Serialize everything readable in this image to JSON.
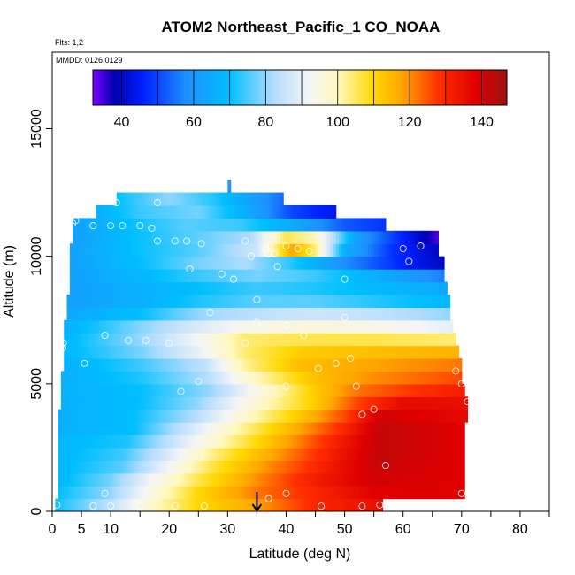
{
  "chart_data": {
    "type": "heatmap",
    "title": "ATOM2 Northeast_Pacific_1 CO_NOAA",
    "flights_label": "Flts: 1,2",
    "dates_label": "MMDD: 0126,0129",
    "xlabel": "Latitude (deg N)",
    "ylabel": "Altitude (m)",
    "xlim": [
      0,
      85
    ],
    "ylim": [
      0,
      18000
    ],
    "x_ticks": [
      {
        "value": 0,
        "label": "0"
      },
      {
        "value": 5,
        "label": "5"
      },
      {
        "value": 10,
        "label": "10"
      },
      {
        "value": 20,
        "label": "20"
      },
      {
        "value": 30,
        "label": "30"
      },
      {
        "value": 40,
        "label": "40"
      },
      {
        "value": 50,
        "label": "50"
      },
      {
        "value": 60,
        "label": "60"
      },
      {
        "value": 70,
        "label": "70"
      },
      {
        "value": 80,
        "label": "80"
      }
    ],
    "x_minor_ticks": [
      15,
      25,
      35,
      45,
      55,
      65,
      75,
      85
    ],
    "y_ticks": [
      {
        "value": 0,
        "label": "0"
      },
      {
        "value": 5000,
        "label": "5000"
      },
      {
        "value": 10000,
        "label": "10000"
      },
      {
        "value": 15000,
        "label": "15000"
      }
    ],
    "colorbar": {
      "range": [
        32,
        147
      ],
      "stops": [
        {
          "v": 32,
          "color": "#7a00ff"
        },
        {
          "v": 38,
          "color": "#0000b0"
        },
        {
          "v": 46,
          "color": "#0020ff"
        },
        {
          "v": 58,
          "color": "#1e90ff"
        },
        {
          "v": 70,
          "color": "#00bfff"
        },
        {
          "v": 82,
          "color": "#b0dcff"
        },
        {
          "v": 92,
          "color": "#f5f5f5"
        },
        {
          "v": 100,
          "color": "#fff8c0"
        },
        {
          "v": 110,
          "color": "#ffd800"
        },
        {
          "v": 118,
          "color": "#ffa500"
        },
        {
          "v": 128,
          "color": "#ff3000"
        },
        {
          "v": 138,
          "color": "#e00000"
        },
        {
          "v": 147,
          "color": "#a01010"
        }
      ],
      "ticks": [
        {
          "value": 40,
          "label": "40"
        },
        {
          "value": 60,
          "label": "60"
        },
        {
          "value": 80,
          "label": "80"
        },
        {
          "value": 100,
          "label": "100"
        },
        {
          "value": 120,
          "label": "120"
        },
        {
          "value": 140,
          "label": "140"
        }
      ]
    },
    "marker_latitude": 35,
    "profiles": [
      {
        "alt": 250,
        "lat_min": 0.5,
        "lat_max": 56.5,
        "points": [
          [
            0,
            70
          ],
          [
            10,
            84
          ],
          [
            18,
            100
          ],
          [
            25,
            110
          ],
          [
            35,
            118
          ],
          [
            45,
            130
          ],
          [
            56,
            135
          ]
        ]
      },
      {
        "alt": 750,
        "lat_min": 1,
        "lat_max": 70.5,
        "points": [
          [
            1,
            70
          ],
          [
            10,
            80
          ],
          [
            17,
            95
          ],
          [
            25,
            110
          ],
          [
            35,
            122
          ],
          [
            45,
            130
          ],
          [
            55,
            138
          ],
          [
            70,
            138
          ]
        ]
      },
      {
        "alt": 1250,
        "lat_min": 1,
        "lat_max": 70.5,
        "points": [
          [
            1,
            68
          ],
          [
            10,
            78
          ],
          [
            17,
            92
          ],
          [
            25,
            106
          ],
          [
            35,
            120
          ],
          [
            45,
            132
          ],
          [
            55,
            140
          ],
          [
            70,
            138
          ]
        ]
      },
      {
        "alt": 1750,
        "lat_min": 1,
        "lat_max": 70.5,
        "points": [
          [
            1,
            68
          ],
          [
            12,
            76
          ],
          [
            19,
            90
          ],
          [
            27,
            106
          ],
          [
            37,
            120
          ],
          [
            47,
            132
          ],
          [
            55,
            141
          ],
          [
            70,
            138
          ]
        ]
      },
      {
        "alt": 2250,
        "lat_min": 1,
        "lat_max": 70.5,
        "points": [
          [
            1,
            68
          ],
          [
            12,
            74
          ],
          [
            20,
            88
          ],
          [
            28,
            104
          ],
          [
            38,
            118
          ],
          [
            48,
            132
          ],
          [
            56,
            142
          ],
          [
            70,
            138
          ]
        ]
      },
      {
        "alt": 2750,
        "lat_min": 1,
        "lat_max": 70.5,
        "points": [
          [
            1,
            68
          ],
          [
            13,
            72
          ],
          [
            21,
            86
          ],
          [
            29,
            100
          ],
          [
            39,
            116
          ],
          [
            49,
            132
          ],
          [
            56,
            142
          ],
          [
            70,
            138
          ]
        ]
      },
      {
        "alt": 3250,
        "lat_min": 1,
        "lat_max": 70.5,
        "points": [
          [
            1,
            66
          ],
          [
            14,
            70
          ],
          [
            22,
            84
          ],
          [
            30,
            98
          ],
          [
            40,
            114
          ],
          [
            50,
            130
          ],
          [
            56,
            142
          ],
          [
            70,
            138
          ]
        ]
      },
      {
        "alt": 3750,
        "lat_min": 1,
        "lat_max": 71,
        "points": [
          [
            1,
            66
          ],
          [
            14,
            70
          ],
          [
            24,
            82
          ],
          [
            32,
            96
          ],
          [
            42,
            112
          ],
          [
            50,
            126
          ],
          [
            56,
            140
          ],
          [
            71,
            136
          ]
        ]
      },
      {
        "alt": 4250,
        "lat_min": 1.5,
        "lat_max": 71,
        "points": [
          [
            1.5,
            66
          ],
          [
            15,
            70
          ],
          [
            25,
            80
          ],
          [
            34,
            96
          ],
          [
            44,
            110
          ],
          [
            52,
            126
          ],
          [
            60,
            136
          ],
          [
            71,
            135
          ]
        ]
      },
      {
        "alt": 4750,
        "lat_min": 1.5,
        "lat_max": 70.5,
        "points": [
          [
            1.5,
            66
          ],
          [
            15,
            70
          ],
          [
            27,
            80
          ],
          [
            36,
            96
          ],
          [
            45,
            112
          ],
          [
            52,
            122
          ],
          [
            62,
            128
          ],
          [
            70.5,
            132
          ]
        ]
      },
      {
        "alt": 5250,
        "lat_min": 1.5,
        "lat_max": 70,
        "points": [
          [
            1.5,
            66
          ],
          [
            15,
            72
          ],
          [
            26,
            82
          ],
          [
            35,
            100
          ],
          [
            45,
            114
          ],
          [
            55,
            120
          ],
          [
            70,
            126
          ]
        ]
      },
      {
        "alt": 5750,
        "lat_min": 2,
        "lat_max": 70,
        "points": [
          [
            2,
            66
          ],
          [
            15,
            74
          ],
          [
            26,
            84
          ],
          [
            33,
            102
          ],
          [
            42,
            114
          ],
          [
            55,
            118
          ],
          [
            70,
            122
          ]
        ]
      },
      {
        "alt": 6250,
        "lat_min": 2,
        "lat_max": 69.5,
        "points": [
          [
            2,
            68
          ],
          [
            15,
            78
          ],
          [
            25,
            90
          ],
          [
            33,
            104
          ],
          [
            43,
            112
          ],
          [
            55,
            114
          ],
          [
            69.5,
            116
          ]
        ]
      },
      {
        "alt": 6750,
        "lat_min": 2,
        "lat_max": 69,
        "points": [
          [
            2,
            68
          ],
          [
            15,
            80
          ],
          [
            25,
            92
          ],
          [
            33,
            104
          ],
          [
            43,
            106
          ],
          [
            55,
            106
          ],
          [
            69,
            104
          ]
        ]
      },
      {
        "alt": 7250,
        "lat_min": 2,
        "lat_max": 68.5,
        "points": [
          [
            2,
            66
          ],
          [
            14,
            78
          ],
          [
            25,
            88
          ],
          [
            34,
            94
          ],
          [
            44,
            96
          ],
          [
            56,
            94
          ],
          [
            68.5,
            90
          ]
        ]
      },
      {
        "alt": 7750,
        "lat_min": 2.5,
        "lat_max": 68,
        "points": [
          [
            2.5,
            64
          ],
          [
            15,
            70
          ],
          [
            25,
            80
          ],
          [
            35,
            84
          ],
          [
            45,
            86
          ],
          [
            57,
            84
          ],
          [
            68,
            80
          ]
        ]
      },
      {
        "alt": 8250,
        "lat_min": 2.5,
        "lat_max": 68,
        "points": [
          [
            2.5,
            62
          ],
          [
            15,
            66
          ],
          [
            25,
            72
          ],
          [
            35,
            76
          ],
          [
            45,
            76
          ],
          [
            57,
            72
          ],
          [
            68,
            68
          ]
        ]
      },
      {
        "alt": 8750,
        "lat_min": 3,
        "lat_max": 67.5,
        "points": [
          [
            3,
            62
          ],
          [
            15,
            66
          ],
          [
            25,
            70
          ],
          [
            35,
            74
          ],
          [
            45,
            72
          ],
          [
            57,
            68
          ],
          [
            67.5,
            64
          ]
        ]
      },
      {
        "alt": 9250,
        "lat_min": 3,
        "lat_max": 67,
        "points": [
          [
            3,
            62
          ],
          [
            15,
            68
          ],
          [
            25,
            74
          ],
          [
            35,
            78
          ],
          [
            45,
            74
          ],
          [
            55,
            66
          ],
          [
            67,
            56
          ]
        ]
      },
      {
        "alt": 9750,
        "lat_min": 3,
        "lat_max": 67,
        "points": [
          [
            3,
            62
          ],
          [
            15,
            70
          ],
          [
            25,
            78
          ],
          [
            33,
            82
          ],
          [
            40,
            74
          ],
          [
            50,
            58
          ],
          [
            60,
            46
          ],
          [
            67,
            40
          ]
        ]
      },
      {
        "alt": 10250,
        "lat_min": 3,
        "lat_max": 66,
        "points": [
          [
            3,
            62
          ],
          [
            14,
            70
          ],
          [
            25,
            76
          ],
          [
            35,
            86
          ],
          [
            41,
            118
          ],
          [
            45,
            104
          ],
          [
            50,
            66
          ],
          [
            58,
            48
          ],
          [
            66,
            40
          ]
        ]
      },
      {
        "alt": 10750,
        "lat_min": 3.5,
        "lat_max": 66,
        "points": [
          [
            3.5,
            62
          ],
          [
            14,
            70
          ],
          [
            24,
            76
          ],
          [
            34,
            82
          ],
          [
            40,
            106
          ],
          [
            45,
            100
          ],
          [
            52,
            62
          ],
          [
            60,
            46
          ],
          [
            66,
            34
          ]
        ]
      },
      {
        "alt": 11250,
        "lat_min": 3.5,
        "lat_max": 57,
        "points": [
          [
            3.5,
            62
          ],
          [
            13,
            70
          ],
          [
            23,
            76
          ],
          [
            32,
            74
          ],
          [
            42,
            64
          ],
          [
            50,
            52
          ],
          [
            57,
            48
          ]
        ]
      },
      {
        "alt": 11750,
        "lat_min": 7.5,
        "lat_max": 48.5,
        "points": [
          [
            7.5,
            66
          ],
          [
            15,
            74
          ],
          [
            25,
            78
          ],
          [
            33,
            66
          ],
          [
            41,
            50
          ],
          [
            48.5,
            44
          ]
        ]
      },
      {
        "alt": 12250,
        "lat_min": 11,
        "lat_max": 39.5,
        "points": [
          [
            11,
            70
          ],
          [
            20,
            80
          ],
          [
            28,
            72
          ],
          [
            34,
            62
          ],
          [
            39.5,
            54
          ]
        ]
      },
      {
        "alt": 12750,
        "lat_min": 30,
        "lat_max": 30.5,
        "points": [
          [
            30,
            60
          ],
          [
            30.5,
            60
          ]
        ]
      }
    ],
    "samples": [
      [
        0.8,
        250
      ],
      [
        7,
        200
      ],
      [
        10,
        200
      ],
      [
        15,
        200
      ],
      [
        21,
        200
      ],
      [
        26,
        200
      ],
      [
        46,
        200
      ],
      [
        53,
        200
      ],
      [
        56,
        250
      ],
      [
        9,
        700
      ],
      [
        37,
        500
      ],
      [
        40,
        700
      ],
      [
        70,
        700
      ],
      [
        57,
        1800
      ],
      [
        53,
        3800
      ],
      [
        55,
        4000
      ],
      [
        71,
        4300
      ],
      [
        70,
        5000
      ],
      [
        69,
        5500
      ],
      [
        52,
        4900
      ],
      [
        51,
        6000
      ],
      [
        48.5,
        5800
      ],
      [
        45.5,
        5600
      ],
      [
        43,
        6900
      ],
      [
        40,
        4900
      ],
      [
        35,
        7400
      ],
      [
        50,
        7600
      ],
      [
        1.8,
        6400
      ],
      [
        1.9,
        6600
      ],
      [
        5.5,
        5800
      ],
      [
        9,
        6900
      ],
      [
        13,
        6700
      ],
      [
        16,
        6700
      ],
      [
        20,
        6600
      ],
      [
        22,
        4700
      ],
      [
        25,
        5100
      ],
      [
        27,
        7800
      ],
      [
        35,
        8300
      ],
      [
        40,
        7300
      ],
      [
        33,
        6600
      ],
      [
        23.5,
        9500
      ],
      [
        29,
        9300
      ],
      [
        31,
        9100
      ],
      [
        38.5,
        9600
      ],
      [
        38,
        10100
      ],
      [
        37,
        10100
      ],
      [
        36.5,
        10300
      ],
      [
        33,
        10600
      ],
      [
        34,
        10000
      ],
      [
        40,
        10400
      ],
      [
        42,
        10300
      ],
      [
        44,
        10200
      ],
      [
        50,
        9100
      ],
      [
        60,
        10300
      ],
      [
        61,
        9800
      ],
      [
        63,
        10400
      ],
      [
        3.5,
        11300
      ],
      [
        4,
        11400
      ],
      [
        7,
        11200
      ],
      [
        10,
        11200
      ],
      [
        12,
        11200
      ],
      [
        15,
        11200
      ],
      [
        17,
        11100
      ],
      [
        18,
        10600
      ],
      [
        21,
        10600
      ],
      [
        23,
        10600
      ],
      [
        25.5,
        10500
      ],
      [
        11,
        12100
      ],
      [
        18,
        12100
      ]
    ]
  }
}
